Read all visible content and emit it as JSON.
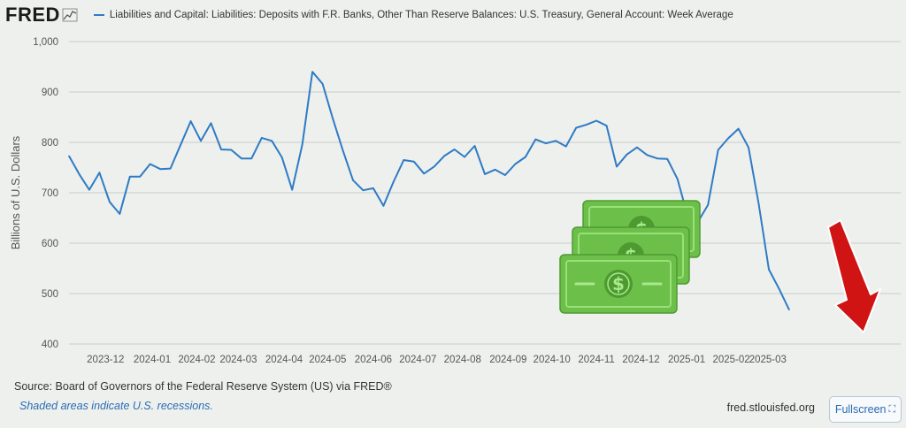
{
  "brand": {
    "logo_text": "FRED",
    "logo_mark_icon": "chart-line-icon"
  },
  "source_text": "Source: Board of Governors of the Federal Reserve System (US) via FRED®",
  "recession_note": "Shaded areas indicate U.S. recessions.",
  "site_url": "fred.stlouisfed.org",
  "fullscreen_label": "Fullscreen",
  "overlays": {
    "money_icon": "dollar-bills-icon",
    "arrow_icon": "red-down-arrow-icon"
  },
  "colors": {
    "series": "#2f7bc4",
    "background": "#eef0ee",
    "grid": "#c9cbc9",
    "money": "#6cc04a",
    "arrow": "#d01414"
  },
  "chart_data": {
    "type": "line",
    "legend_label": "Liabilities and Capital: Liabilities: Deposits with F.R. Banks, Other Than Reserve Balances: U.S. Treasury, General Account: Week Average",
    "ylabel": "Billions of U.S. Dollars",
    "ylim": [
      400,
      1000
    ],
    "yticks": [
      400,
      500,
      600,
      700,
      800,
      900,
      1000
    ],
    "ytick_labels": [
      "400",
      "500",
      "600",
      "700",
      "800",
      "900",
      "1,000"
    ],
    "grid": true,
    "x_range": [
      0,
      82
    ],
    "xtick_labels": [
      {
        "label": "2023-12",
        "pos": 3.6
      },
      {
        "label": "2024-01",
        "pos": 8.2
      },
      {
        "label": "2024-02",
        "pos": 12.6
      },
      {
        "label": "2024-03",
        "pos": 16.7
      },
      {
        "label": "2024-04",
        "pos": 21.2
      },
      {
        "label": "2024-05",
        "pos": 25.5
      },
      {
        "label": "2024-06",
        "pos": 30
      },
      {
        "label": "2024-07",
        "pos": 34.4
      },
      {
        "label": "2024-08",
        "pos": 38.8
      },
      {
        "label": "2024-09",
        "pos": 43.3
      },
      {
        "label": "2024-10",
        "pos": 47.6
      },
      {
        "label": "2024-11",
        "pos": 52
      },
      {
        "label": "2024-12",
        "pos": 56.4
      },
      {
        "label": "2025-01",
        "pos": 60.9
      },
      {
        "label": "2025-02",
        "pos": 65.3
      },
      {
        "label": "2025-03",
        "pos": 68.9
      }
    ],
    "values": [
      773,
      737,
      706,
      740,
      682,
      658,
      732,
      732,
      757,
      747,
      748,
      795,
      842,
      803,
      838,
      786,
      785,
      768,
      768,
      809,
      803,
      770,
      706,
      796,
      940,
      916,
      848,
      784,
      725,
      705,
      709,
      674,
      722,
      765,
      762,
      738,
      752,
      773,
      786,
      771,
      793,
      737,
      746,
      735,
      757,
      771,
      806,
      798,
      803,
      792,
      829,
      835,
      843,
      833,
      752,
      776,
      790,
      775,
      768,
      767,
      727,
      653,
      642,
      676,
      785,
      808,
      827,
      790,
      678,
      548,
      510,
      468
    ]
  }
}
